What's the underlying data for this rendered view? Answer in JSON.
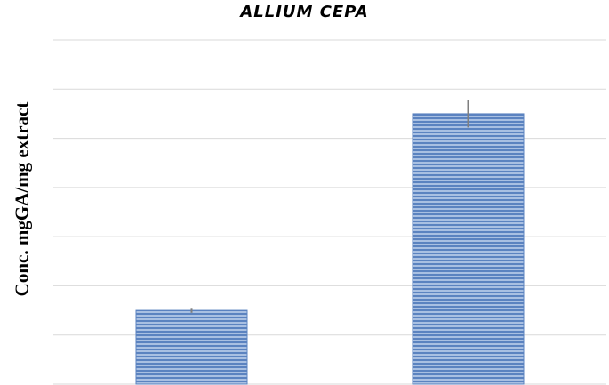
{
  "chart_data": {
    "type": "bar",
    "title": "ALLIUM CEPA",
    "xlabel": "",
    "ylabel": "Conc. mgGA/mg extract",
    "ylim": [
      0,
      7
    ],
    "grid": true,
    "categories": [
      "",
      ""
    ],
    "values": [
      1.5,
      5.5
    ],
    "errors": [
      0.05,
      0.28
    ],
    "colors": {
      "bar": "#5b83c0",
      "bar_stripe": "#a9c0e2",
      "grid": "#d9d9d9",
      "error": "#7f7f7f"
    }
  }
}
